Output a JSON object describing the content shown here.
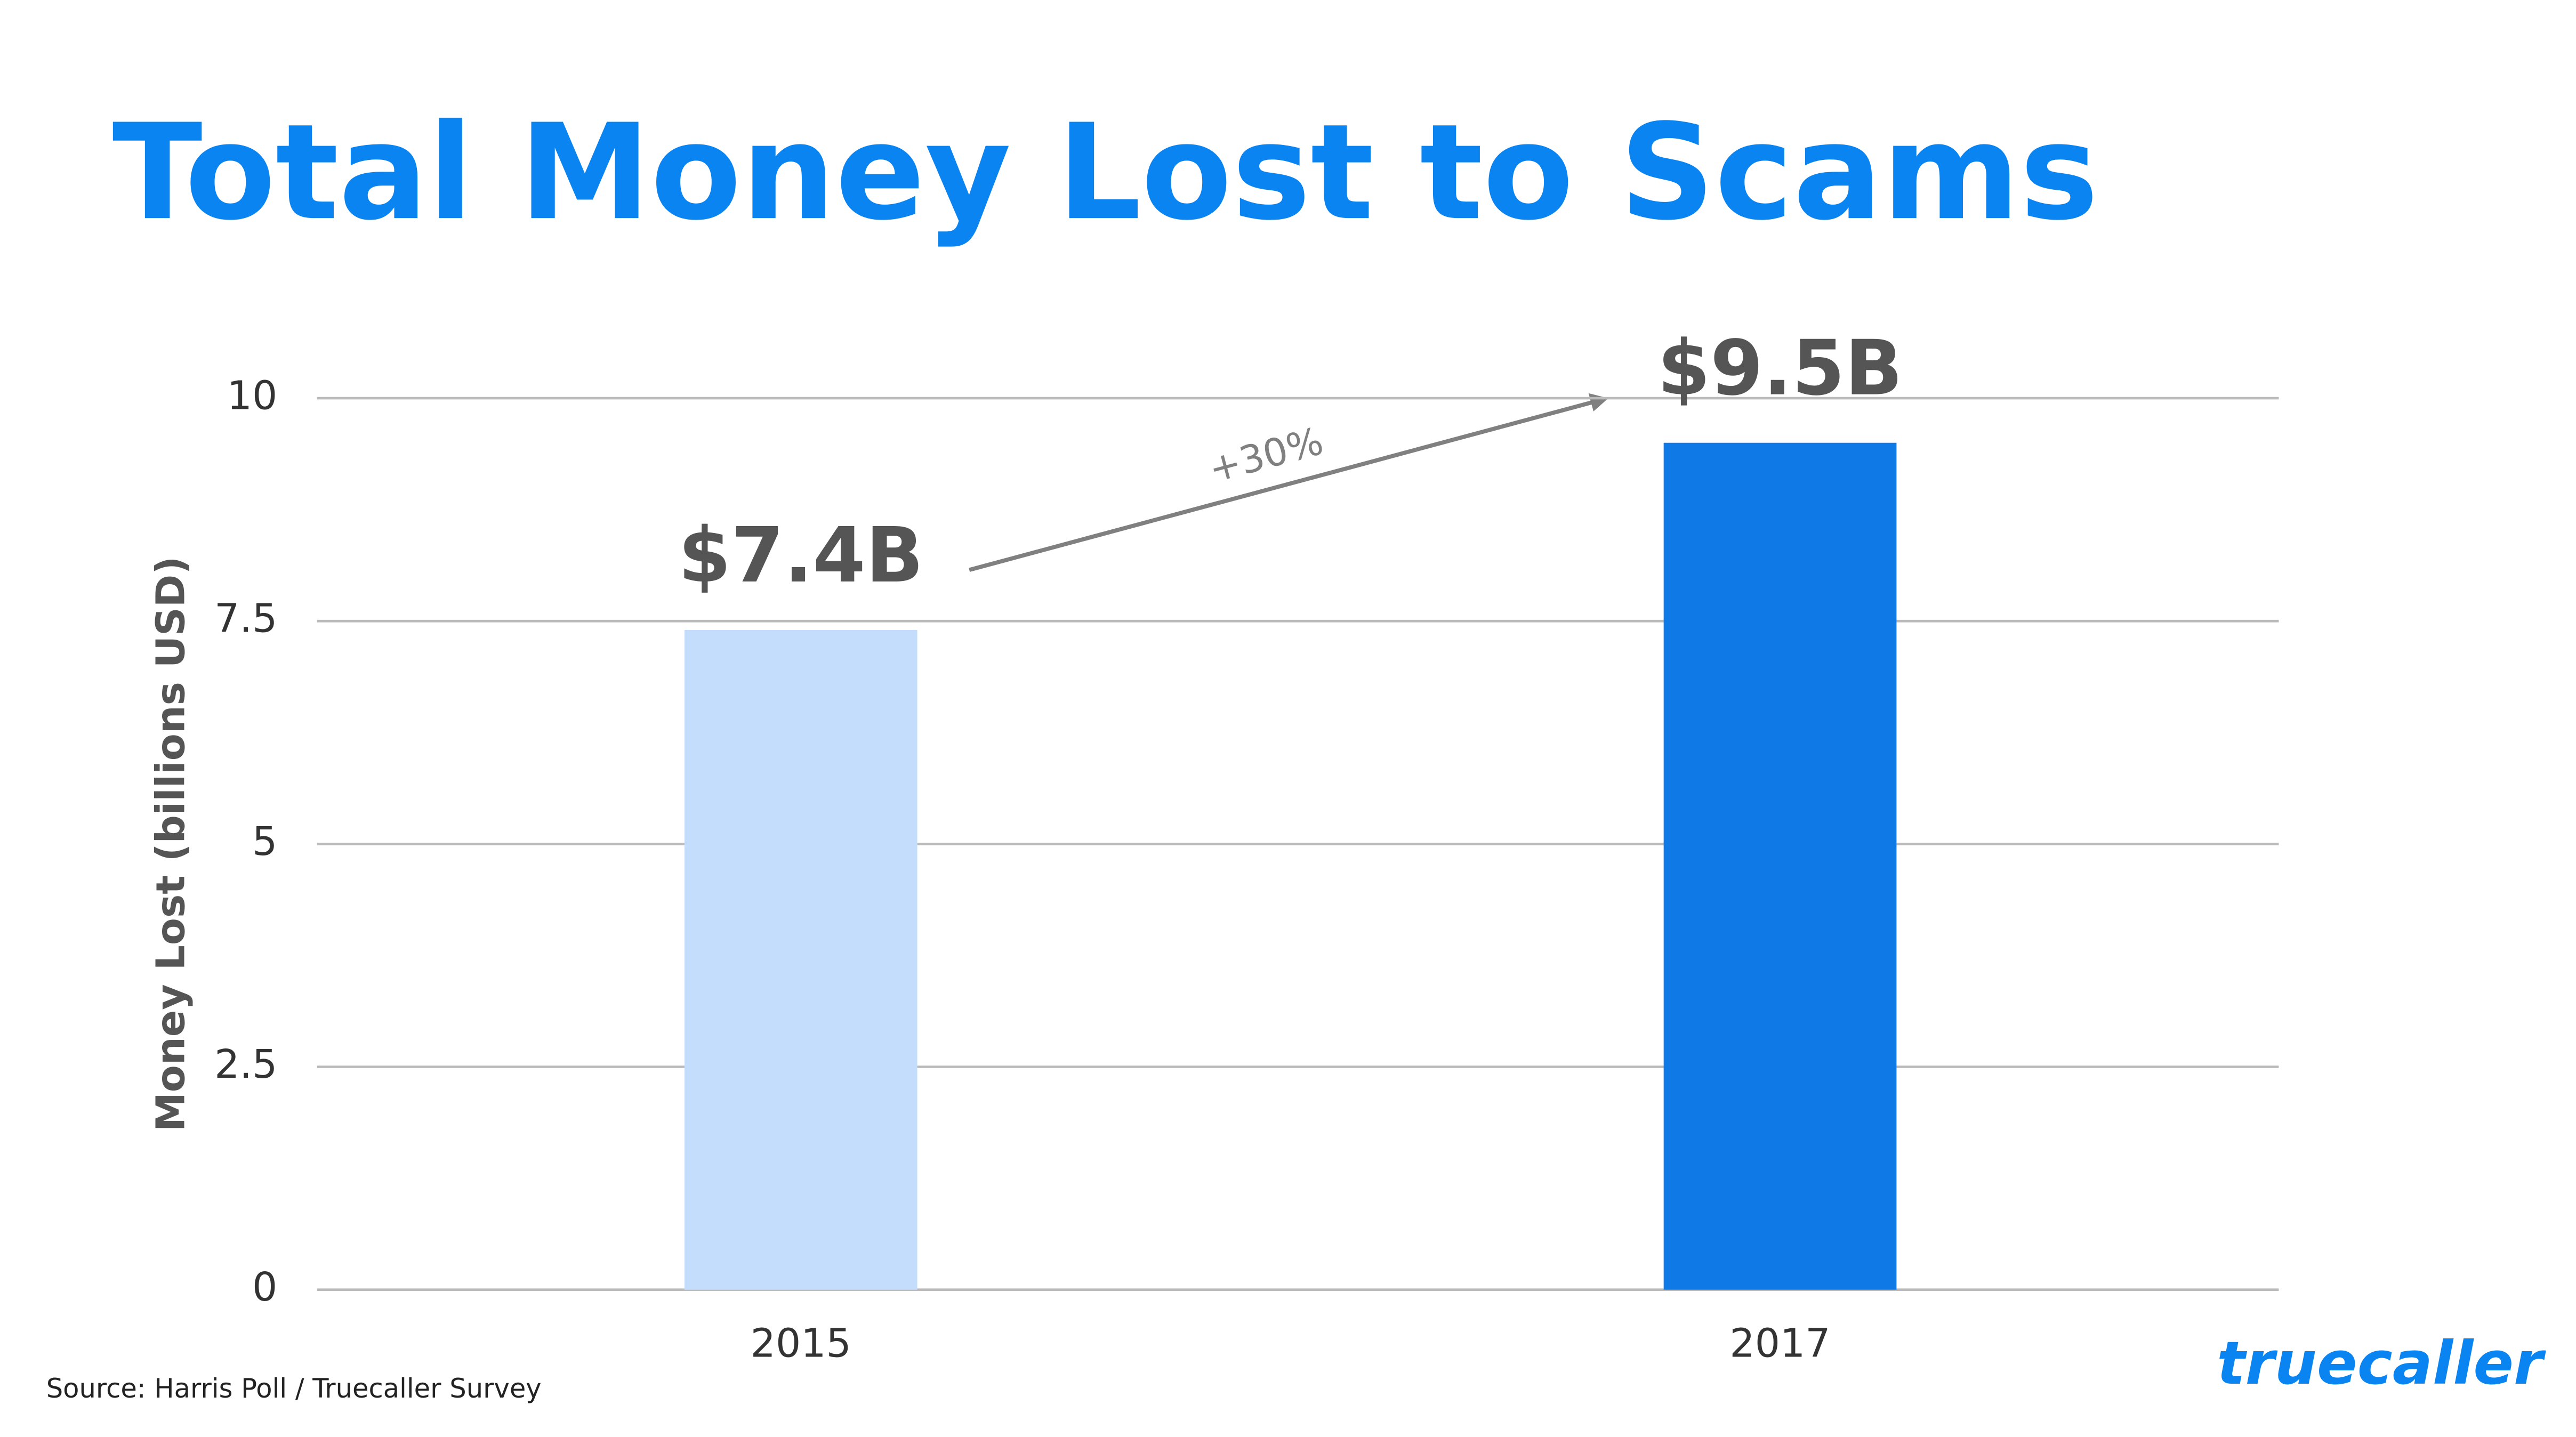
{
  "chart_data": {
    "type": "bar",
    "title": "Total Money Lost to Scams",
    "y_label": "Money Lost (billions USD)",
    "categories": [
      "2015",
      "2017"
    ],
    "values": [
      7.4,
      9.5
    ],
    "value_labels": [
      "$7.4B",
      "$9.5B"
    ],
    "colors": [
      "#c5ddfc",
      "#0f7ae5"
    ],
    "ylim": [
      0,
      10
    ],
    "yticks": [
      0,
      2.5,
      5,
      7.5,
      10
    ],
    "grid": true,
    "annotation": "+30%",
    "source": "Source: Harris Poll / Truecaller Survey",
    "logo": "truecaller"
  }
}
